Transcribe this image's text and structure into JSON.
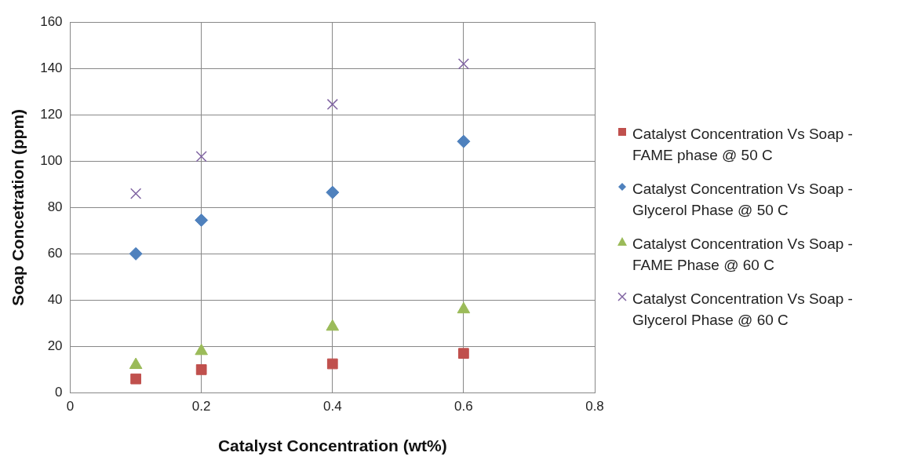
{
  "chart_data": {
    "type": "scatter",
    "xlabel": "Catalyst Concentration (wt%)",
    "ylabel": "Soap Concetration (ppm)",
    "xlim": [
      0,
      0.8
    ],
    "xticks": [
      0,
      0.2,
      0.4,
      0.6,
      0.8
    ],
    "ylim": [
      0,
      160
    ],
    "yticks": [
      0,
      20,
      40,
      60,
      80,
      100,
      120,
      140,
      160
    ],
    "grid": true,
    "legend": "right",
    "x": [
      0.1,
      0.2,
      0.4,
      0.6
    ],
    "series": [
      {
        "name": "Catalyst Concentration Vs Soap - FAME phase @ 50 C",
        "color": "#c0504d",
        "marker": "square",
        "values": [
          6,
          10,
          12.5,
          17
        ]
      },
      {
        "name": "Catalyst Concentration Vs Soap - Glycerol Phase @ 50 C",
        "color": "#4f81bd",
        "marker": "diamond",
        "values": [
          60,
          74.5,
          86.5,
          108.5
        ]
      },
      {
        "name": "Catalyst Concentration Vs Soap - FAME Phase @ 60 C",
        "color": "#9bbb59",
        "marker": "triangle",
        "values": [
          12,
          18,
          28.5,
          36
        ]
      },
      {
        "name": "Catalyst Concentration Vs Soap - Glycerol Phase @ 60 C",
        "color": "#8064a2",
        "marker": "cross",
        "values": [
          86,
          102,
          124.5,
          142
        ]
      }
    ]
  }
}
